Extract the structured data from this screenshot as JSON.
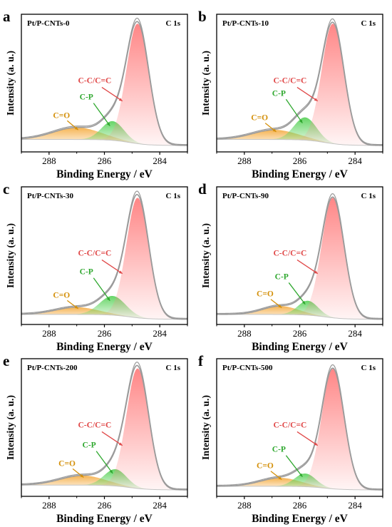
{
  "chart_data": [
    {
      "type": "area",
      "panel_letter": "a",
      "sample": "Pt/P-CNTs-0",
      "core_level": "C 1s",
      "xlabel": "Binding Energy / eV",
      "ylabel": "Intensity (a. u.)",
      "xlim": [
        289,
        283
      ],
      "x_ticks": [
        "288",
        "286",
        "284"
      ],
      "x_reversed": true,
      "grid": false,
      "peaks": [
        {
          "name": "C-C/C=C",
          "center": 284.8,
          "height": 1.0,
          "fwhm": 0.95,
          "color": "#ff8080"
        },
        {
          "name": "C-P",
          "center": 285.7,
          "height": 0.16,
          "fwhm": 0.95,
          "color": "#5fd35f"
        },
        {
          "name": "C=O",
          "center": 287.0,
          "height": 0.1,
          "fwhm": 2.0,
          "color": "#f5b04a"
        }
      ],
      "baseline": {
        "low_side": 0.03,
        "high_side": 0.08
      }
    },
    {
      "type": "area",
      "panel_letter": "b",
      "sample": "Pt/P-CNTs-10",
      "core_level": "C 1s",
      "xlabel": "Binding Energy / eV",
      "ylabel": "Intensity (a. u.)",
      "xlim": [
        289,
        283
      ],
      "x_ticks": [
        "288",
        "286",
        "284"
      ],
      "x_reversed": true,
      "grid": false,
      "peaks": [
        {
          "name": "C-C/C=C",
          "center": 284.8,
          "height": 1.0,
          "fwhm": 0.95,
          "color": "#ff8080"
        },
        {
          "name": "C-P",
          "center": 285.8,
          "height": 0.19,
          "fwhm": 0.95,
          "color": "#5fd35f"
        },
        {
          "name": "C=O",
          "center": 286.9,
          "height": 0.08,
          "fwhm": 1.9,
          "color": "#f5b04a"
        }
      ],
      "baseline": {
        "low_side": 0.03,
        "high_side": 0.08
      }
    },
    {
      "type": "area",
      "panel_letter": "c",
      "sample": "Pt/P-CNTs-30",
      "core_level": "C 1s",
      "xlabel": "Binding Energy / eV",
      "ylabel": "Intensity (a. u.)",
      "xlim": [
        289,
        283
      ],
      "x_ticks": [
        "288",
        "286",
        "284"
      ],
      "x_reversed": true,
      "grid": false,
      "peaks": [
        {
          "name": "C-C/C=C",
          "center": 284.8,
          "height": 1.0,
          "fwhm": 0.95,
          "color": "#ff8080"
        },
        {
          "name": "C-P",
          "center": 285.7,
          "height": 0.16,
          "fwhm": 1.1,
          "color": "#5fd35f"
        },
        {
          "name": "C=O",
          "center": 287.0,
          "height": 0.06,
          "fwhm": 1.8,
          "color": "#f5b04a"
        }
      ],
      "baseline": {
        "low_side": 0.02,
        "high_side": 0.06
      }
    },
    {
      "type": "area",
      "panel_letter": "d",
      "sample": "Pt/P-CNTs-90",
      "core_level": "C 1s",
      "xlabel": "Binding Energy / eV",
      "ylabel": "Intensity (a. u.)",
      "xlim": [
        289,
        283
      ],
      "x_ticks": [
        "288",
        "286",
        "284"
      ],
      "x_reversed": true,
      "grid": false,
      "peaks": [
        {
          "name": "C-C/C=C",
          "center": 284.8,
          "height": 1.0,
          "fwhm": 0.95,
          "color": "#ff8080"
        },
        {
          "name": "C-P",
          "center": 285.7,
          "height": 0.12,
          "fwhm": 0.85,
          "color": "#5fd35f"
        },
        {
          "name": "C=O",
          "center": 286.7,
          "height": 0.07,
          "fwhm": 1.5,
          "color": "#f5b04a"
        }
      ],
      "baseline": {
        "low_side": 0.02,
        "high_side": 0.06
      }
    },
    {
      "type": "area",
      "panel_letter": "e",
      "sample": "Pt/P-CNTs-200",
      "core_level": "C 1s",
      "xlabel": "Binding Energy / eV",
      "ylabel": "Intensity (a. u.)",
      "xlim": [
        289,
        283
      ],
      "x_ticks": [
        "288",
        "286",
        "284"
      ],
      "x_reversed": true,
      "grid": false,
      "peaks": [
        {
          "name": "C-C/C=C",
          "center": 284.8,
          "height": 1.0,
          "fwhm": 0.95,
          "color": "#ff8080"
        },
        {
          "name": "C-P",
          "center": 285.6,
          "height": 0.14,
          "fwhm": 0.95,
          "color": "#5fd35f"
        },
        {
          "name": "C=O",
          "center": 286.8,
          "height": 0.08,
          "fwhm": 1.9,
          "color": "#f5b04a"
        }
      ],
      "baseline": {
        "low_side": 0.03,
        "high_side": 0.07
      }
    },
    {
      "type": "area",
      "panel_letter": "f",
      "sample": "Pt/P-CNTs-500",
      "core_level": "C 1s",
      "xlabel": "Binding Energy / eV",
      "ylabel": "Intensity (a. u.)",
      "xlim": [
        289,
        283
      ],
      "x_ticks": [
        "288",
        "286",
        "284"
      ],
      "x_reversed": true,
      "grid": false,
      "peaks": [
        {
          "name": "C-C/C=C",
          "center": 284.8,
          "height": 1.0,
          "fwhm": 0.95,
          "color": "#ff8080"
        },
        {
          "name": "C-P",
          "center": 285.8,
          "height": 0.11,
          "fwhm": 0.9,
          "color": "#5fd35f"
        },
        {
          "name": "C=O",
          "center": 286.7,
          "height": 0.07,
          "fwhm": 1.7,
          "color": "#f5b04a"
        }
      ],
      "baseline": {
        "low_side": 0.03,
        "high_side": 0.06
      }
    }
  ],
  "colors": {
    "envelope": "#9a9a9a",
    "baseline": "#c4c4c4",
    "axis": "#000000",
    "c_o_label": "#d4900a",
    "c_p_label": "#2fa82f",
    "cc_label": "#e04848"
  }
}
